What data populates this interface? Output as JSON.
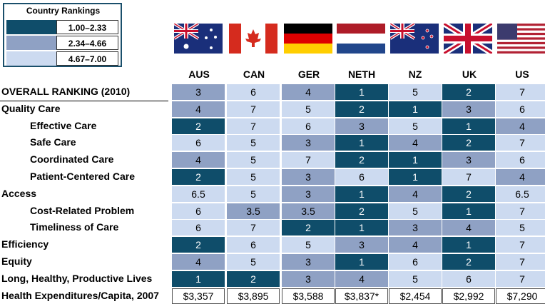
{
  "legend": {
    "title": "Country Rankings",
    "ranges": [
      "1.00–2.33",
      "2.34–4.66",
      "4.67–7.00"
    ],
    "colors": [
      "#0f4d6a",
      "#8fa1c4",
      "#ccdaf0"
    ]
  },
  "chart_data": {
    "type": "table",
    "columns": [
      "AUS",
      "CAN",
      "GER",
      "NETH",
      "NZ",
      "UK",
      "US"
    ],
    "rows": [
      {
        "label": "OVERALL RANKING (2010)",
        "indent": false,
        "values": [
          "3",
          "6",
          "4",
          "1",
          "5",
          "2",
          "7"
        ],
        "tiers": [
          2,
          3,
          2,
          1,
          3,
          1,
          3
        ]
      },
      {
        "label": "Quality Care",
        "indent": false,
        "values": [
          "4",
          "7",
          "5",
          "2",
          "1",
          "3",
          "6"
        ],
        "tiers": [
          2,
          3,
          3,
          1,
          1,
          2,
          3
        ]
      },
      {
        "label": "Effective Care",
        "indent": true,
        "values": [
          "2",
          "7",
          "6",
          "3",
          "5",
          "1",
          "4"
        ],
        "tiers": [
          1,
          3,
          3,
          2,
          3,
          1,
          2
        ]
      },
      {
        "label": "Safe Care",
        "indent": true,
        "values": [
          "6",
          "5",
          "3",
          "1",
          "4",
          "2",
          "7"
        ],
        "tiers": [
          3,
          3,
          2,
          1,
          2,
          1,
          3
        ]
      },
      {
        "label": "Coordinated Care",
        "indent": true,
        "values": [
          "4",
          "5",
          "7",
          "2",
          "1",
          "3",
          "6"
        ],
        "tiers": [
          2,
          3,
          3,
          1,
          1,
          2,
          3
        ]
      },
      {
        "label": "Patient-Centered Care",
        "indent": true,
        "values": [
          "2",
          "5",
          "3",
          "6",
          "1",
          "7",
          "4"
        ],
        "tiers": [
          1,
          3,
          2,
          3,
          1,
          3,
          2
        ]
      },
      {
        "label": "Access",
        "indent": false,
        "values": [
          "6.5",
          "5",
          "3",
          "1",
          "4",
          "2",
          "6.5"
        ],
        "tiers": [
          3,
          3,
          2,
          1,
          2,
          1,
          3
        ]
      },
      {
        "label": "Cost-Related Problem",
        "indent": true,
        "values": [
          "6",
          "3.5",
          "3.5",
          "2",
          "5",
          "1",
          "7"
        ],
        "tiers": [
          3,
          2,
          2,
          1,
          3,
          1,
          3
        ]
      },
      {
        "label": "Timeliness of Care",
        "indent": true,
        "values": [
          "6",
          "7",
          "2",
          "1",
          "3",
          "4",
          "5"
        ],
        "tiers": [
          3,
          3,
          1,
          1,
          2,
          2,
          3
        ]
      },
      {
        "label": "Efficiency",
        "indent": false,
        "values": [
          "2",
          "6",
          "5",
          "3",
          "4",
          "1",
          "7"
        ],
        "tiers": [
          1,
          3,
          3,
          2,
          2,
          1,
          3
        ]
      },
      {
        "label": "Equity",
        "indent": false,
        "values": [
          "4",
          "5",
          "3",
          "1",
          "6",
          "2",
          "7"
        ],
        "tiers": [
          2,
          3,
          2,
          1,
          3,
          1,
          3
        ]
      },
      {
        "label": "Long, Healthy, Productive Lives",
        "indent": false,
        "values": [
          "1",
          "2",
          "3",
          "4",
          "5",
          "6",
          "7"
        ],
        "tiers": [
          1,
          1,
          2,
          2,
          3,
          3,
          3
        ]
      }
    ],
    "expenditures": {
      "label": "Health Expenditures/Capita, 2007",
      "values": [
        "$3,357",
        "$3,895",
        "$3,588",
        "$3,837*",
        "$2,454",
        "$2,992",
        "$7,290"
      ]
    }
  },
  "flags": [
    "australia-flag",
    "canada-flag",
    "germany-flag",
    "netherlands-flag",
    "new-zealand-flag",
    "uk-flag",
    "us-flag"
  ]
}
